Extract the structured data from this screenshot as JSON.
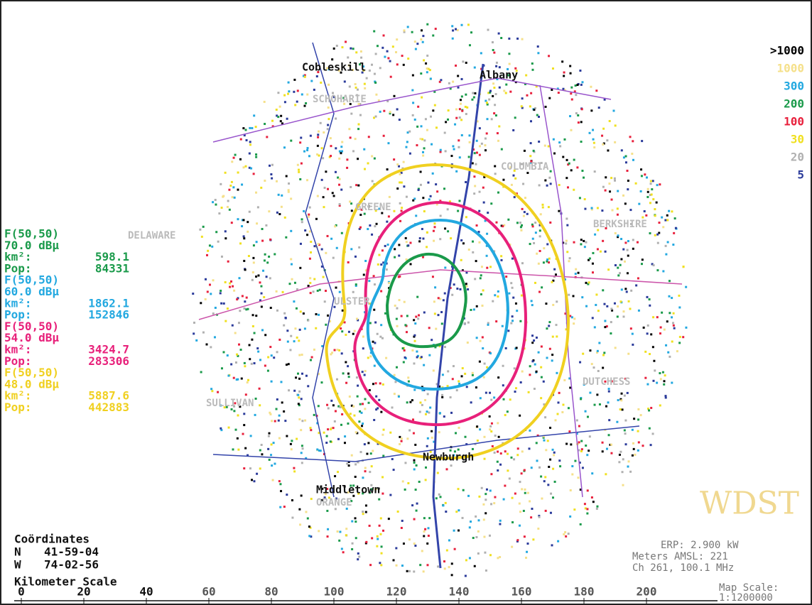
{
  "places": [
    "Cobleskill",
    "Albany",
    "SCHOHARIE",
    "GREENE",
    "COLUMBIA",
    "DELAWARE",
    "BERKSHIRE",
    "ULSTER",
    "SULLIVAN",
    "DUTCHESS",
    "Newburgh",
    "Middletown",
    "ORANGE"
  ],
  "density_legend": [
    {
      "label": ">1000",
      "color": "#000000"
    },
    {
      "label": "1000",
      "color": "#f5e08a"
    },
    {
      "label": "300",
      "color": "#22a8e0"
    },
    {
      "label": "200",
      "color": "#1a9a4a"
    },
    {
      "label": "100",
      "color": "#e8203c"
    },
    {
      "label": "30",
      "color": "#f0e020"
    },
    {
      "label": "20",
      "color": "#b0b0b0"
    },
    {
      "label": "5",
      "color": "#2a3a9a"
    }
  ],
  "contours": [
    {
      "method": "F(50,50)",
      "level": "70.0 dBµ",
      "area_label": "km²:",
      "area": 598.1,
      "pop_label": "Pop:",
      "pop": 84331,
      "color": "#1a9a4a"
    },
    {
      "method": "F(50,50)",
      "level": "60.0 dBµ",
      "area_label": "km²:",
      "area": 1862.1,
      "pop_label": "Pop:",
      "pop": 152846,
      "color": "#22a8e0"
    },
    {
      "method": "F(50,50)",
      "level": "54.0 dBµ",
      "area_label": "km²:",
      "area": 3424.7,
      "pop_label": "Pop:",
      "pop": 283306,
      "color": "#e8207a"
    },
    {
      "method": "F(50,50)",
      "level": "48.0 dBµ",
      "area_label": "km²:",
      "area": 5887.6,
      "pop_label": "Pop:",
      "pop": 442883,
      "color": "#f0d020"
    }
  ],
  "coordinates": {
    "title": "Coördinates",
    "lat_label": "N",
    "lat": "41-59-04",
    "lon_label": "W",
    "lon": "74-02-56"
  },
  "scale": {
    "title": "Kilometer Scale",
    "ticks": [
      0,
      20,
      40,
      60,
      80,
      100,
      120,
      140,
      160,
      180,
      200
    ]
  },
  "station": {
    "call": "WDST",
    "erp": "ERP: 2.900 kW",
    "height": "Meters AMSL: 221",
    "channel": "Ch 261, 100.1 MHz",
    "map_scale_label": "Map Scale:",
    "map_scale": "1:1200000"
  }
}
